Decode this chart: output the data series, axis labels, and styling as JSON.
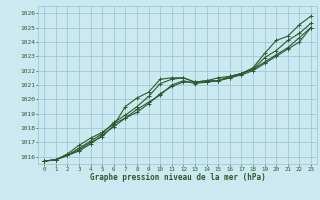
{
  "title": "Graphe pression niveau de la mer (hPa)",
  "bg_color": "#cce8f0",
  "grid_color": "#9ecad8",
  "line_color": "#2d5a2d",
  "xlim": [
    -0.5,
    23.5
  ],
  "ylim": [
    1015.5,
    1026.5
  ],
  "yticks": [
    1016,
    1017,
    1018,
    1019,
    1020,
    1021,
    1022,
    1023,
    1024,
    1025,
    1026
  ],
  "xticks": [
    0,
    1,
    2,
    3,
    4,
    5,
    6,
    7,
    8,
    9,
    10,
    11,
    12,
    13,
    14,
    15,
    16,
    17,
    18,
    19,
    20,
    21,
    22,
    23
  ],
  "series": [
    [
      1015.7,
      1015.8,
      1016.1,
      1016.5,
      1017.0,
      1017.4,
      1018.2,
      1019.5,
      1020.1,
      1020.5,
      1021.4,
      1021.5,
      1021.5,
      1021.2,
      1021.3,
      1021.5,
      1021.6,
      1021.8,
      1022.2,
      1023.2,
      1024.1,
      1024.4,
      1025.2,
      1025.8
    ],
    [
      1015.7,
      1015.8,
      1016.1,
      1016.6,
      1017.1,
      1017.6,
      1018.4,
      1018.9,
      1019.5,
      1020.2,
      1021.1,
      1021.4,
      1021.5,
      1021.2,
      1021.2,
      1021.3,
      1021.5,
      1021.8,
      1022.1,
      1022.9,
      1023.4,
      1024.1,
      1024.6,
      1025.3
    ],
    [
      1015.7,
      1015.8,
      1016.2,
      1016.8,
      1017.3,
      1017.7,
      1018.3,
      1018.7,
      1019.1,
      1019.7,
      1020.4,
      1020.9,
      1021.2,
      1021.2,
      1021.3,
      1021.3,
      1021.6,
      1021.8,
      1022.1,
      1022.6,
      1023.1,
      1023.6,
      1024.3,
      1025.0
    ],
    [
      1015.7,
      1015.8,
      1016.1,
      1016.4,
      1016.9,
      1017.5,
      1018.1,
      1018.7,
      1019.3,
      1019.8,
      1020.3,
      1021.0,
      1021.3,
      1021.1,
      1021.2,
      1021.3,
      1021.5,
      1021.7,
      1022.0,
      1022.5,
      1023.0,
      1023.5,
      1024.0,
      1025.0
    ]
  ]
}
